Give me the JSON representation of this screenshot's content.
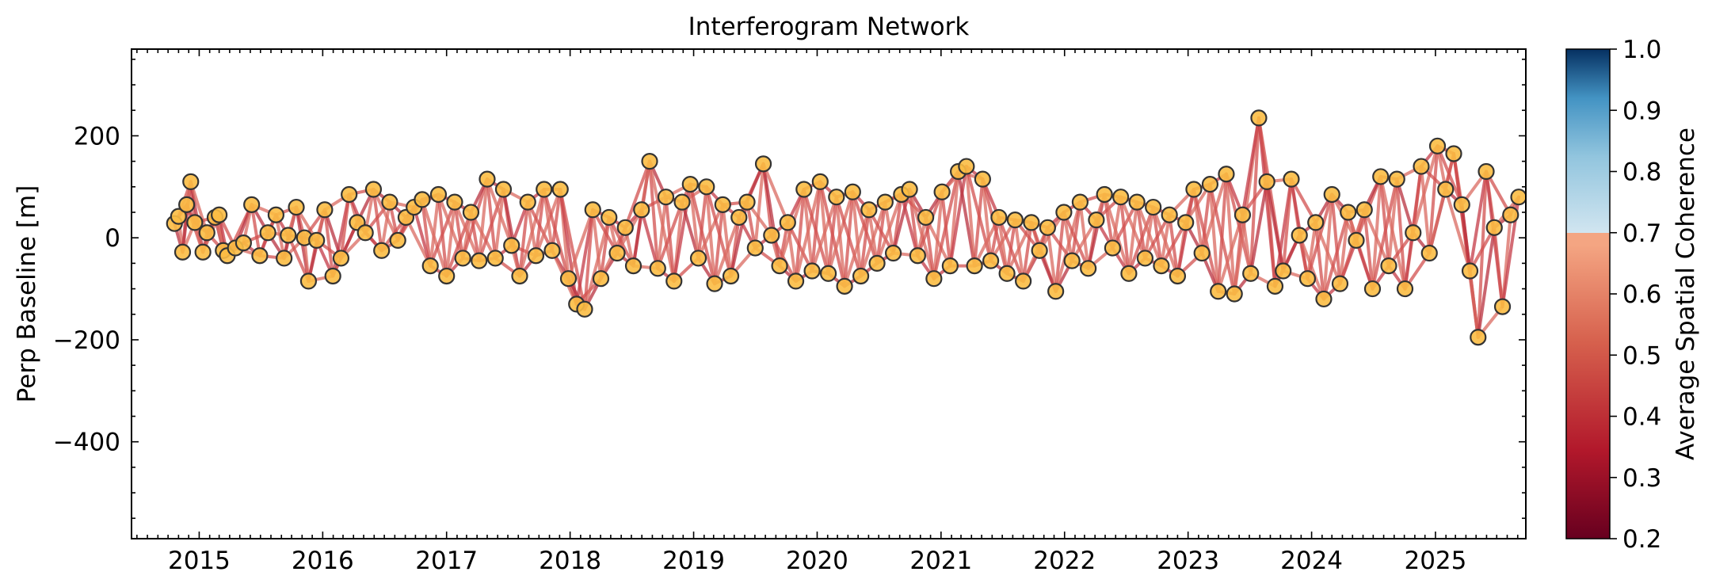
{
  "chart_data": {
    "type": "scatter",
    "title": "Interferogram Network",
    "xlabel": "",
    "ylabel": "Perp Baseline [m]",
    "xlim": [
      "2014-06-15",
      "2025-09-25"
    ],
    "ylim": [
      -590,
      370
    ],
    "x_ticks": [
      "2015",
      "2016",
      "2017",
      "2018",
      "2019",
      "2020",
      "2021",
      "2022",
      "2023",
      "2024",
      "2025"
    ],
    "y_ticks": [
      200,
      0,
      -200,
      -400
    ],
    "y_tick_labels": [
      "200",
      "0",
      "−200",
      "−400"
    ],
    "grid": false,
    "legend": "none",
    "colorbar": {
      "label": "Average Spatial Coherence",
      "range": [
        0.2,
        1.0
      ],
      "tick_labels": [
        "1.0",
        "0.9",
        "0.8",
        "0.7",
        "0.6",
        "0.5",
        "0.4",
        "0.3",
        "0.2"
      ],
      "colormap": "RdBu",
      "colored_range": [
        0.7,
        1.0
      ],
      "below_range_color": "#ef9a7c",
      "colors": {
        "low": "#67001f",
        "mid_low": "#d6604d",
        "light": "#f4a582",
        "pale_blue": "#d1e5f0",
        "mid_blue": "#4393c3",
        "high": "#053061"
      }
    },
    "marker_face": "#fbbc44",
    "marker_edge": "#333333",
    "edge_color": "#c9424b",
    "acquisitions": [
      {
        "date": "2014-10-20",
        "bperp": 28
      },
      {
        "date": "2014-11-01",
        "bperp": 42
      },
      {
        "date": "2014-11-13",
        "bperp": -28
      },
      {
        "date": "2014-11-25",
        "bperp": 65
      },
      {
        "date": "2014-12-07",
        "bperp": 110
      },
      {
        "date": "2014-12-19",
        "bperp": 30
      },
      {
        "date": "2015-01-12",
        "bperp": -28
      },
      {
        "date": "2015-01-24",
        "bperp": 10
      },
      {
        "date": "2015-02-17",
        "bperp": 40
      },
      {
        "date": "2015-03-01",
        "bperp": 45
      },
      {
        "date": "2015-03-13",
        "bperp": -25
      },
      {
        "date": "2015-03-25",
        "bperp": -35
      },
      {
        "date": "2015-04-18",
        "bperp": -20
      },
      {
        "date": "2015-05-12",
        "bperp": -10
      },
      {
        "date": "2015-06-05",
        "bperp": 65
      },
      {
        "date": "2015-06-29",
        "bperp": -35
      },
      {
        "date": "2015-07-23",
        "bperp": 10
      },
      {
        "date": "2015-08-16",
        "bperp": 45
      },
      {
        "date": "2015-09-09",
        "bperp": -40
      },
      {
        "date": "2015-09-21",
        "bperp": 5
      },
      {
        "date": "2015-10-15",
        "bperp": 60
      },
      {
        "date": "2015-11-08",
        "bperp": 0
      },
      {
        "date": "2015-11-20",
        "bperp": -85
      },
      {
        "date": "2015-12-14",
        "bperp": -5
      },
      {
        "date": "2016-01-07",
        "bperp": 55
      },
      {
        "date": "2016-01-31",
        "bperp": -75
      },
      {
        "date": "2016-02-24",
        "bperp": -40
      },
      {
        "date": "2016-03-19",
        "bperp": 85
      },
      {
        "date": "2016-04-12",
        "bperp": 30
      },
      {
        "date": "2016-05-06",
        "bperp": 10
      },
      {
        "date": "2016-05-30",
        "bperp": 95
      },
      {
        "date": "2016-06-23",
        "bperp": -25
      },
      {
        "date": "2016-07-17",
        "bperp": 70
      },
      {
        "date": "2016-08-10",
        "bperp": -5
      },
      {
        "date": "2016-09-03",
        "bperp": 40
      },
      {
        "date": "2016-09-27",
        "bperp": 60
      },
      {
        "date": "2016-10-21",
        "bperp": 75
      },
      {
        "date": "2016-11-14",
        "bperp": -55
      },
      {
        "date": "2016-12-08",
        "bperp": 85
      },
      {
        "date": "2017-01-01",
        "bperp": -75
      },
      {
        "date": "2017-01-25",
        "bperp": 70
      },
      {
        "date": "2017-02-18",
        "bperp": -40
      },
      {
        "date": "2017-03-14",
        "bperp": 50
      },
      {
        "date": "2017-04-07",
        "bperp": -45
      },
      {
        "date": "2017-05-01",
        "bperp": 115
      },
      {
        "date": "2017-05-25",
        "bperp": -40
      },
      {
        "date": "2017-06-18",
        "bperp": 95
      },
      {
        "date": "2017-07-12",
        "bperp": -15
      },
      {
        "date": "2017-08-05",
        "bperp": -75
      },
      {
        "date": "2017-08-29",
        "bperp": 70
      },
      {
        "date": "2017-09-22",
        "bperp": -35
      },
      {
        "date": "2017-10-16",
        "bperp": 95
      },
      {
        "date": "2017-11-09",
        "bperp": -25
      },
      {
        "date": "2017-12-03",
        "bperp": 95
      },
      {
        "date": "2017-12-27",
        "bperp": -80
      },
      {
        "date": "2018-01-20",
        "bperp": -130
      },
      {
        "date": "2018-02-13",
        "bperp": -140
      },
      {
        "date": "2018-03-09",
        "bperp": 55
      },
      {
        "date": "2018-04-02",
        "bperp": -80
      },
      {
        "date": "2018-04-26",
        "bperp": 40
      },
      {
        "date": "2018-05-20",
        "bperp": -30
      },
      {
        "date": "2018-06-13",
        "bperp": 20
      },
      {
        "date": "2018-07-07",
        "bperp": -55
      },
      {
        "date": "2018-07-31",
        "bperp": 55
      },
      {
        "date": "2018-08-24",
        "bperp": 150
      },
      {
        "date": "2018-09-17",
        "bperp": -60
      },
      {
        "date": "2018-10-11",
        "bperp": 80
      },
      {
        "date": "2018-11-04",
        "bperp": -85
      },
      {
        "date": "2018-11-28",
        "bperp": 70
      },
      {
        "date": "2018-12-22",
        "bperp": 105
      },
      {
        "date": "2019-01-15",
        "bperp": -40
      },
      {
        "date": "2019-02-08",
        "bperp": 100
      },
      {
        "date": "2019-03-04",
        "bperp": -90
      },
      {
        "date": "2019-03-28",
        "bperp": 65
      },
      {
        "date": "2019-04-21",
        "bperp": -75
      },
      {
        "date": "2019-05-15",
        "bperp": 40
      },
      {
        "date": "2019-06-08",
        "bperp": 70
      },
      {
        "date": "2019-07-02",
        "bperp": -20
      },
      {
        "date": "2019-07-26",
        "bperp": 145
      },
      {
        "date": "2019-08-19",
        "bperp": 5
      },
      {
        "date": "2019-09-12",
        "bperp": -55
      },
      {
        "date": "2019-10-06",
        "bperp": 30
      },
      {
        "date": "2019-10-30",
        "bperp": -85
      },
      {
        "date": "2019-11-23",
        "bperp": 95
      },
      {
        "date": "2019-12-17",
        "bperp": -65
      },
      {
        "date": "2020-01-10",
        "bperp": 110
      },
      {
        "date": "2020-02-03",
        "bperp": -70
      },
      {
        "date": "2020-02-27",
        "bperp": 80
      },
      {
        "date": "2020-03-22",
        "bperp": -95
      },
      {
        "date": "2020-04-15",
        "bperp": 90
      },
      {
        "date": "2020-05-09",
        "bperp": -75
      },
      {
        "date": "2020-06-02",
        "bperp": 55
      },
      {
        "date": "2020-06-26",
        "bperp": -50
      },
      {
        "date": "2020-07-20",
        "bperp": 70
      },
      {
        "date": "2020-08-13",
        "bperp": -30
      },
      {
        "date": "2020-09-06",
        "bperp": 85
      },
      {
        "date": "2020-09-30",
        "bperp": 95
      },
      {
        "date": "2020-10-24",
        "bperp": -35
      },
      {
        "date": "2020-11-17",
        "bperp": 40
      },
      {
        "date": "2020-12-11",
        "bperp": -80
      },
      {
        "date": "2021-01-04",
        "bperp": 90
      },
      {
        "date": "2021-01-28",
        "bperp": -55
      },
      {
        "date": "2021-02-21",
        "bperp": 130
      },
      {
        "date": "2021-03-17",
        "bperp": 140
      },
      {
        "date": "2021-04-10",
        "bperp": -55
      },
      {
        "date": "2021-05-04",
        "bperp": 115
      },
      {
        "date": "2021-05-28",
        "bperp": -45
      },
      {
        "date": "2021-06-21",
        "bperp": 40
      },
      {
        "date": "2021-07-15",
        "bperp": -70
      },
      {
        "date": "2021-08-08",
        "bperp": 35
      },
      {
        "date": "2021-09-01",
        "bperp": -85
      },
      {
        "date": "2021-09-25",
        "bperp": 30
      },
      {
        "date": "2021-10-19",
        "bperp": -25
      },
      {
        "date": "2021-11-12",
        "bperp": 20
      },
      {
        "date": "2021-12-06",
        "bperp": -105
      },
      {
        "date": "2021-12-30",
        "bperp": 50
      },
      {
        "date": "2022-01-23",
        "bperp": -45
      },
      {
        "date": "2022-02-16",
        "bperp": 70
      },
      {
        "date": "2022-03-12",
        "bperp": -60
      },
      {
        "date": "2022-04-05",
        "bperp": 35
      },
      {
        "date": "2022-04-29",
        "bperp": 85
      },
      {
        "date": "2022-05-23",
        "bperp": -20
      },
      {
        "date": "2022-06-16",
        "bperp": 80
      },
      {
        "date": "2022-07-10",
        "bperp": -70
      },
      {
        "date": "2022-08-03",
        "bperp": 70
      },
      {
        "date": "2022-08-27",
        "bperp": -40
      },
      {
        "date": "2022-09-20",
        "bperp": 60
      },
      {
        "date": "2022-10-14",
        "bperp": -55
      },
      {
        "date": "2022-11-07",
        "bperp": 45
      },
      {
        "date": "2022-12-01",
        "bperp": -75
      },
      {
        "date": "2022-12-25",
        "bperp": 30
      },
      {
        "date": "2023-01-18",
        "bperp": 95
      },
      {
        "date": "2023-02-11",
        "bperp": -30
      },
      {
        "date": "2023-03-07",
        "bperp": 105
      },
      {
        "date": "2023-03-31",
        "bperp": -105
      },
      {
        "date": "2023-04-24",
        "bperp": 125
      },
      {
        "date": "2023-05-18",
        "bperp": -110
      },
      {
        "date": "2023-06-11",
        "bperp": 45
      },
      {
        "date": "2023-07-05",
        "bperp": -70
      },
      {
        "date": "2023-07-29",
        "bperp": 235
      },
      {
        "date": "2023-08-22",
        "bperp": 110
      },
      {
        "date": "2023-09-15",
        "bperp": -95
      },
      {
        "date": "2023-10-09",
        "bperp": -65
      },
      {
        "date": "2023-11-02",
        "bperp": 115
      },
      {
        "date": "2023-11-26",
        "bperp": 5
      },
      {
        "date": "2023-12-20",
        "bperp": -80
      },
      {
        "date": "2024-01-13",
        "bperp": 30
      },
      {
        "date": "2024-02-06",
        "bperp": -120
      },
      {
        "date": "2024-03-01",
        "bperp": 85
      },
      {
        "date": "2024-03-25",
        "bperp": -90
      },
      {
        "date": "2024-04-18",
        "bperp": 50
      },
      {
        "date": "2024-05-12",
        "bperp": -5
      },
      {
        "date": "2024-06-05",
        "bperp": 55
      },
      {
        "date": "2024-06-29",
        "bperp": -100
      },
      {
        "date": "2024-07-23",
        "bperp": 120
      },
      {
        "date": "2024-08-16",
        "bperp": -55
      },
      {
        "date": "2024-09-09",
        "bperp": 115
      },
      {
        "date": "2024-10-03",
        "bperp": -100
      },
      {
        "date": "2024-10-27",
        "bperp": 10
      },
      {
        "date": "2024-11-20",
        "bperp": 140
      },
      {
        "date": "2024-12-14",
        "bperp": -30
      },
      {
        "date": "2025-01-07",
        "bperp": 180
      },
      {
        "date": "2025-01-31",
        "bperp": 95
      },
      {
        "date": "2025-02-24",
        "bperp": 165
      },
      {
        "date": "2025-03-20",
        "bperp": 65
      },
      {
        "date": "2025-04-13",
        "bperp": -65
      },
      {
        "date": "2025-05-07",
        "bperp": -195
      },
      {
        "date": "2025-05-31",
        "bperp": 130
      },
      {
        "date": "2025-06-24",
        "bperp": 20
      },
      {
        "date": "2025-07-18",
        "bperp": -135
      },
      {
        "date": "2025-08-11",
        "bperp": 45
      },
      {
        "date": "2025-09-04",
        "bperp": 80
      }
    ]
  }
}
